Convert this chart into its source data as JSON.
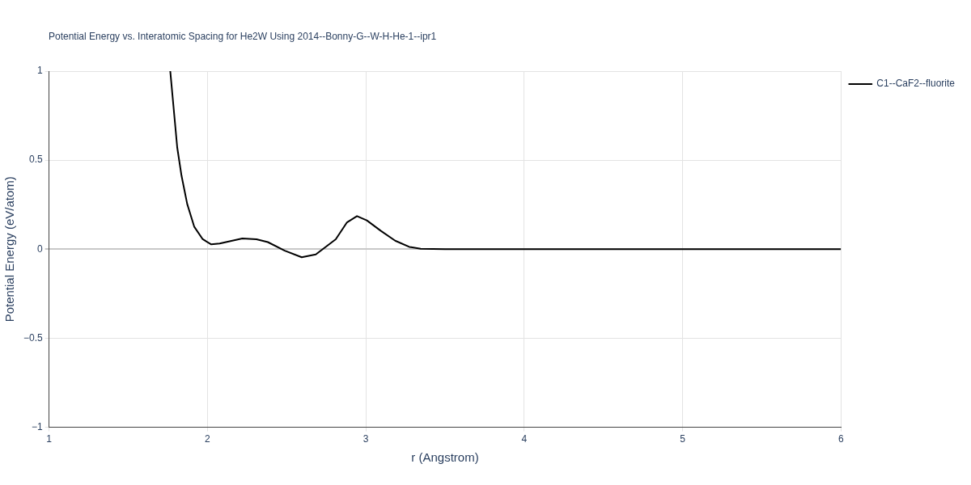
{
  "chart_data": {
    "type": "line",
    "title": "Potential Energy vs. Interatomic Spacing for He2W Using 2014--Bonny-G--W-H-He-1--ipr1",
    "xlabel": "r (Angstrom)",
    "ylabel": "Potential Energy (eV/atom)",
    "xlim": [
      1,
      6
    ],
    "xticks": [
      1,
      2,
      3,
      4,
      5,
      6
    ],
    "ylim": [
      -1,
      1
    ],
    "yticks": [
      {
        "value": -1,
        "label": "−1"
      },
      {
        "value": -0.5,
        "label": "−0.5"
      },
      0,
      0.5,
      1
    ],
    "grid": true,
    "legend": "top right",
    "marker": "none",
    "line_style": "solid",
    "series": [
      {
        "name": "C1--CaF2--fluorite",
        "color": "#000000",
        "x": [
          1.765,
          1.809,
          1.836,
          1.872,
          1.916,
          1.97,
          2.024,
          2.077,
          2.22,
          2.309,
          2.381,
          2.488,
          2.595,
          2.684,
          2.81,
          2.881,
          2.944,
          3.006,
          3.095,
          3.185,
          3.274,
          3.346,
          3.5,
          6
        ],
        "values": [
          1,
          0.571,
          0.413,
          0.254,
          0.127,
          0.056,
          0.027,
          0.032,
          0.06,
          0.056,
          0.04,
          -0.008,
          -0.045,
          -0.029,
          0.056,
          0.151,
          0.186,
          0.162,
          0.103,
          0.048,
          0.013,
          0.003,
          0,
          0
        ]
      }
    ]
  }
}
